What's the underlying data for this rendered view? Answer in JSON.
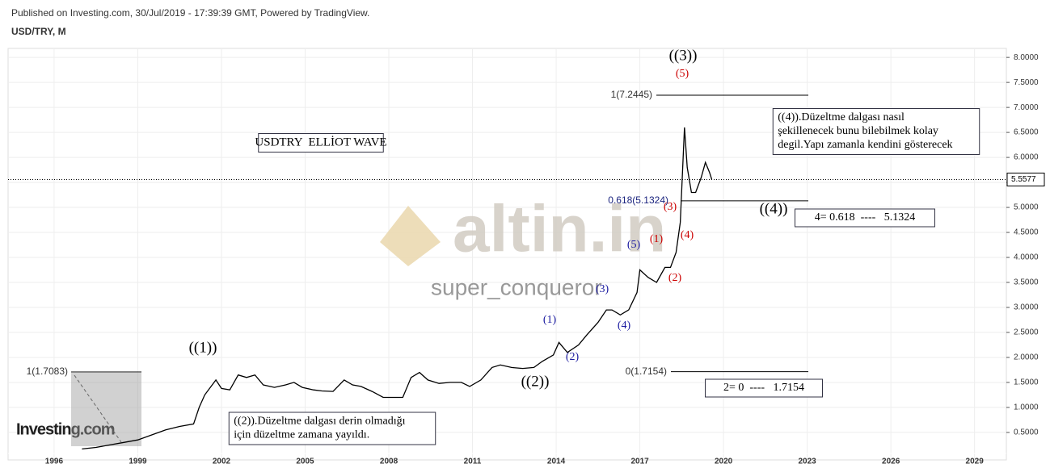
{
  "chart_data": {
    "type": "line",
    "header": "Published on Investing.com, 30/Jul/2019 - 17:39:39 GMT, Powered by TradingView.",
    "title": "USD/TRY, M",
    "x": [
      1997.0,
      1997.5,
      1998.0,
      1998.5,
      1999.0,
      1999.5,
      2000.0,
      2000.5,
      2001.0,
      2001.2,
      2001.4,
      2001.8,
      2002.0,
      2002.3,
      2002.6,
      2002.9,
      2003.2,
      2003.5,
      2003.9,
      2004.3,
      2004.6,
      2004.9,
      2005.3,
      2005.6,
      2006.0,
      2006.4,
      2006.7,
      2007.0,
      2007.4,
      2007.8,
      2008.2,
      2008.5,
      2008.8,
      2009.1,
      2009.4,
      2009.8,
      2010.2,
      2010.6,
      2010.9,
      2011.3,
      2011.7,
      2012.0,
      2012.4,
      2012.8,
      2013.2,
      2013.5,
      2013.9,
      2014.1,
      2014.4,
      2014.8,
      2015.1,
      2015.5,
      2015.8,
      2016.0,
      2016.3,
      2016.6,
      2016.9,
      2017.0,
      2017.3,
      2017.6,
      2017.9,
      2018.1,
      2018.3,
      2018.45,
      2018.6,
      2018.7,
      2018.85,
      2019.0,
      2019.2,
      2019.35,
      2019.5,
      2019.58
    ],
    "series": [
      {
        "name": "USD/TRY",
        "color": "#000000",
        "values": [
          0.17,
          0.2,
          0.25,
          0.3,
          0.35,
          0.45,
          0.55,
          0.62,
          0.67,
          1.0,
          1.25,
          1.55,
          1.38,
          1.35,
          1.65,
          1.6,
          1.65,
          1.45,
          1.4,
          1.45,
          1.5,
          1.4,
          1.35,
          1.33,
          1.32,
          1.55,
          1.45,
          1.42,
          1.32,
          1.2,
          1.2,
          1.2,
          1.6,
          1.7,
          1.55,
          1.48,
          1.5,
          1.5,
          1.42,
          1.55,
          1.8,
          1.85,
          1.8,
          1.78,
          1.8,
          1.92,
          2.05,
          2.3,
          2.1,
          2.25,
          2.45,
          2.7,
          2.95,
          2.95,
          2.85,
          2.95,
          3.3,
          3.75,
          3.6,
          3.5,
          3.8,
          3.8,
          4.1,
          4.7,
          6.6,
          5.8,
          5.3,
          5.3,
          5.6,
          5.9,
          5.7,
          5.56
        ]
      }
    ],
    "last": 5.5577,
    "xlim": [
      1994.35,
      2030.14
    ],
    "xticks": [
      1996,
      1999,
      2002,
      2005,
      2008,
      2011,
      2014,
      2017,
      2020,
      2023,
      2026,
      2029
    ],
    "ylim": [
      -0.05,
      8.18
    ],
    "yticks": [
      {
        "value": 0.5,
        "label": "0.5000"
      },
      {
        "value": 1.0,
        "label": "1.0000"
      },
      {
        "value": 1.5,
        "label": "1.5000"
      },
      {
        "value": 2.0,
        "label": "2.0000"
      },
      {
        "value": 2.5,
        "label": "2.5000"
      },
      {
        "value": 3.0,
        "label": "3.0000"
      },
      {
        "value": 3.5,
        "label": "3.5000"
      },
      {
        "value": 4.0,
        "label": "4.0000"
      },
      {
        "value": 4.5,
        "label": "4.5000"
      },
      {
        "value": 5.0,
        "label": "5.0000"
      },
      {
        "value": 5.5,
        "label": "5.5000"
      },
      {
        "value": 6.0,
        "label": "6.0000"
      },
      {
        "value": 6.5,
        "label": "6.5000"
      },
      {
        "value": 7.0,
        "label": "7.0000"
      },
      {
        "value": 7.5,
        "label": "7.5000"
      },
      {
        "value": 8.0,
        "label": "8.0000"
      }
    ],
    "grid": true,
    "levels": [
      {
        "value": 7.2445,
        "label": "1(7.2445)"
      },
      {
        "value": 5.1324,
        "label": "0.618(5.1324)"
      },
      {
        "value": 1.7154,
        "label": "0(1.7154)"
      },
      {
        "value": 1.7083,
        "label": "1(1.7083)"
      }
    ],
    "annotations": [
      "USDTRY  ELLİOT WAVE",
      "((1))",
      "((2))",
      "((3))",
      "((4))",
      "(1)",
      "(2)",
      "(3)",
      "(4)",
      "(5)",
      "(1)",
      "(2)",
      "(3)",
      "(4)",
      "(5)",
      [
        "((4)).Düzeltme dalgası nasıl",
        "şekillenecek bunu bilebilmek kolay",
        "degil.Yapı zamanla kendini gösterecek"
      ],
      "4= 0.618  ----   5.1324",
      "2= 0  ----   1.7154",
      [
        "((2)).Düzeltme dalgası derin olmadığı",
        "için düzeltme zamana yayıldı."
      ],
      "altin.in",
      "super_conqueror",
      "Investing.com"
    ]
  }
}
